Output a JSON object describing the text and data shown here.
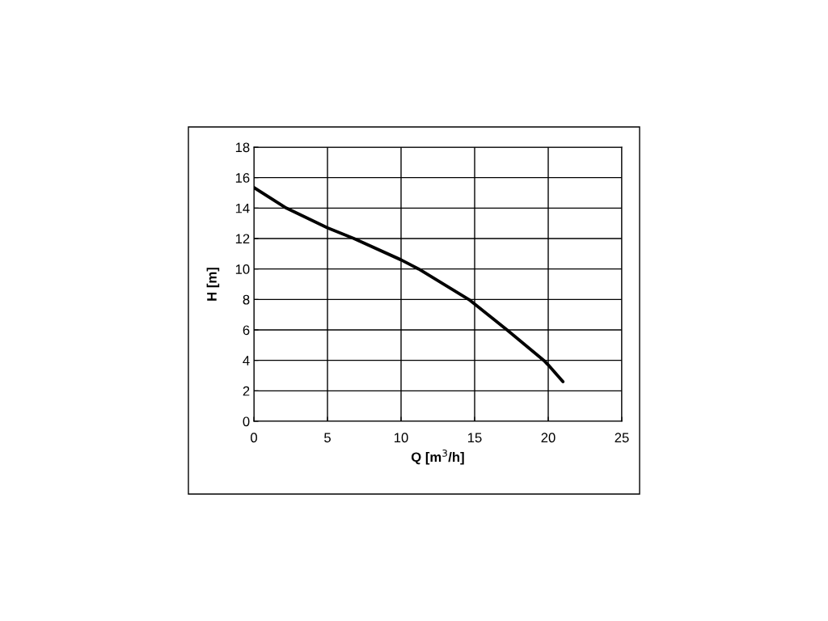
{
  "chart_data": {
    "type": "line",
    "xlabel": "Q [m$^{3}$/h]",
    "ylabel": "H [m]",
    "x": [
      0,
      2.2,
      5,
      6.8,
      10,
      11.2,
      14.6,
      15,
      17.2,
      19.7,
      20,
      21
    ],
    "series": [
      {
        "color": "#000000",
        "values": [
          15.35,
          14,
          12.7,
          12,
          10.6,
          10,
          8,
          7.7,
          6,
          4,
          3.7,
          2.6
        ]
      }
    ],
    "xlim": [
      0,
      25
    ],
    "xticks": [
      0,
      5,
      10,
      15,
      20,
      25
    ],
    "ylim": [
      0,
      18
    ],
    "yticks": [
      0,
      2,
      4,
      6,
      8,
      10,
      12,
      14,
      16,
      18
    ],
    "grid": true,
    "marker": "none",
    "line_style": "solid"
  }
}
